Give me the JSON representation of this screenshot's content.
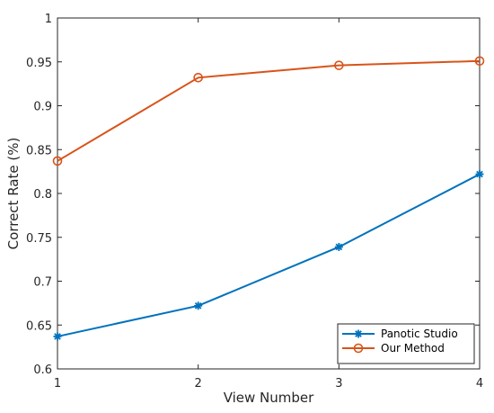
{
  "chart_data": {
    "type": "line",
    "title": "",
    "xlabel": "View Number",
    "ylabel": "Correct Rate (%)",
    "x": [
      1,
      2,
      3,
      4
    ],
    "xlim": [
      1,
      4
    ],
    "ylim": [
      0.6,
      1
    ],
    "xticks": [
      "1",
      "2",
      "3",
      "4"
    ],
    "yticks": [
      "0.6",
      "0.65",
      "0.7",
      "0.75",
      "0.8",
      "0.85",
      "0.9",
      "0.95",
      "1"
    ],
    "grid": false,
    "legend_position": "bottom-right",
    "series": [
      {
        "name": "Panotic Studio",
        "values": [
          0.637,
          0.672,
          0.739,
          0.822
        ],
        "color": "#0072BD",
        "marker": "asterisk"
      },
      {
        "name": "Our Method",
        "values": [
          0.837,
          0.932,
          0.946,
          0.951
        ],
        "color": "#D95319",
        "marker": "circle"
      }
    ]
  }
}
